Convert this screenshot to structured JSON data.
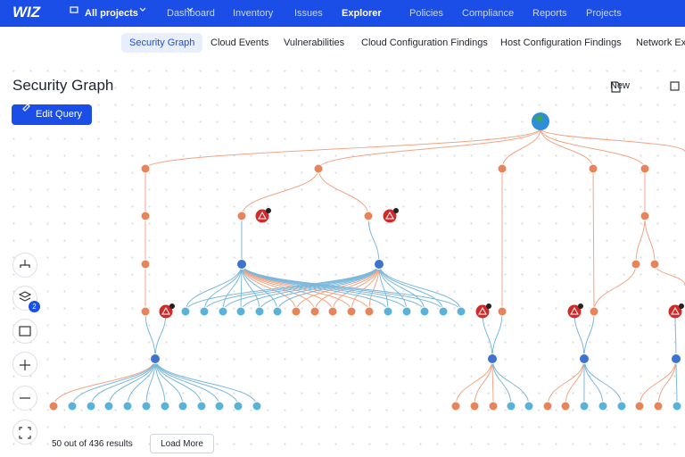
{
  "nav": {
    "logo": "WIZ",
    "project": "All projects",
    "items": [
      "Dashboard",
      "Inventory",
      "Issues",
      "Explorer",
      "Policies",
      "Compliance",
      "Reports",
      "Projects"
    ]
  },
  "tabs": [
    "Security Graph",
    "Cloud Events",
    "Vulnerabilities",
    "Cloud Configuration Findings",
    "Host Configuration Findings",
    "Network Exposure"
  ],
  "page": {
    "title": "Security Graph",
    "edit_query": "Edit Query",
    "new": "New"
  },
  "toolbar": {
    "badge": 2
  },
  "footer": {
    "results": "50 out of 436 results",
    "load_more": "Load More"
  }
}
